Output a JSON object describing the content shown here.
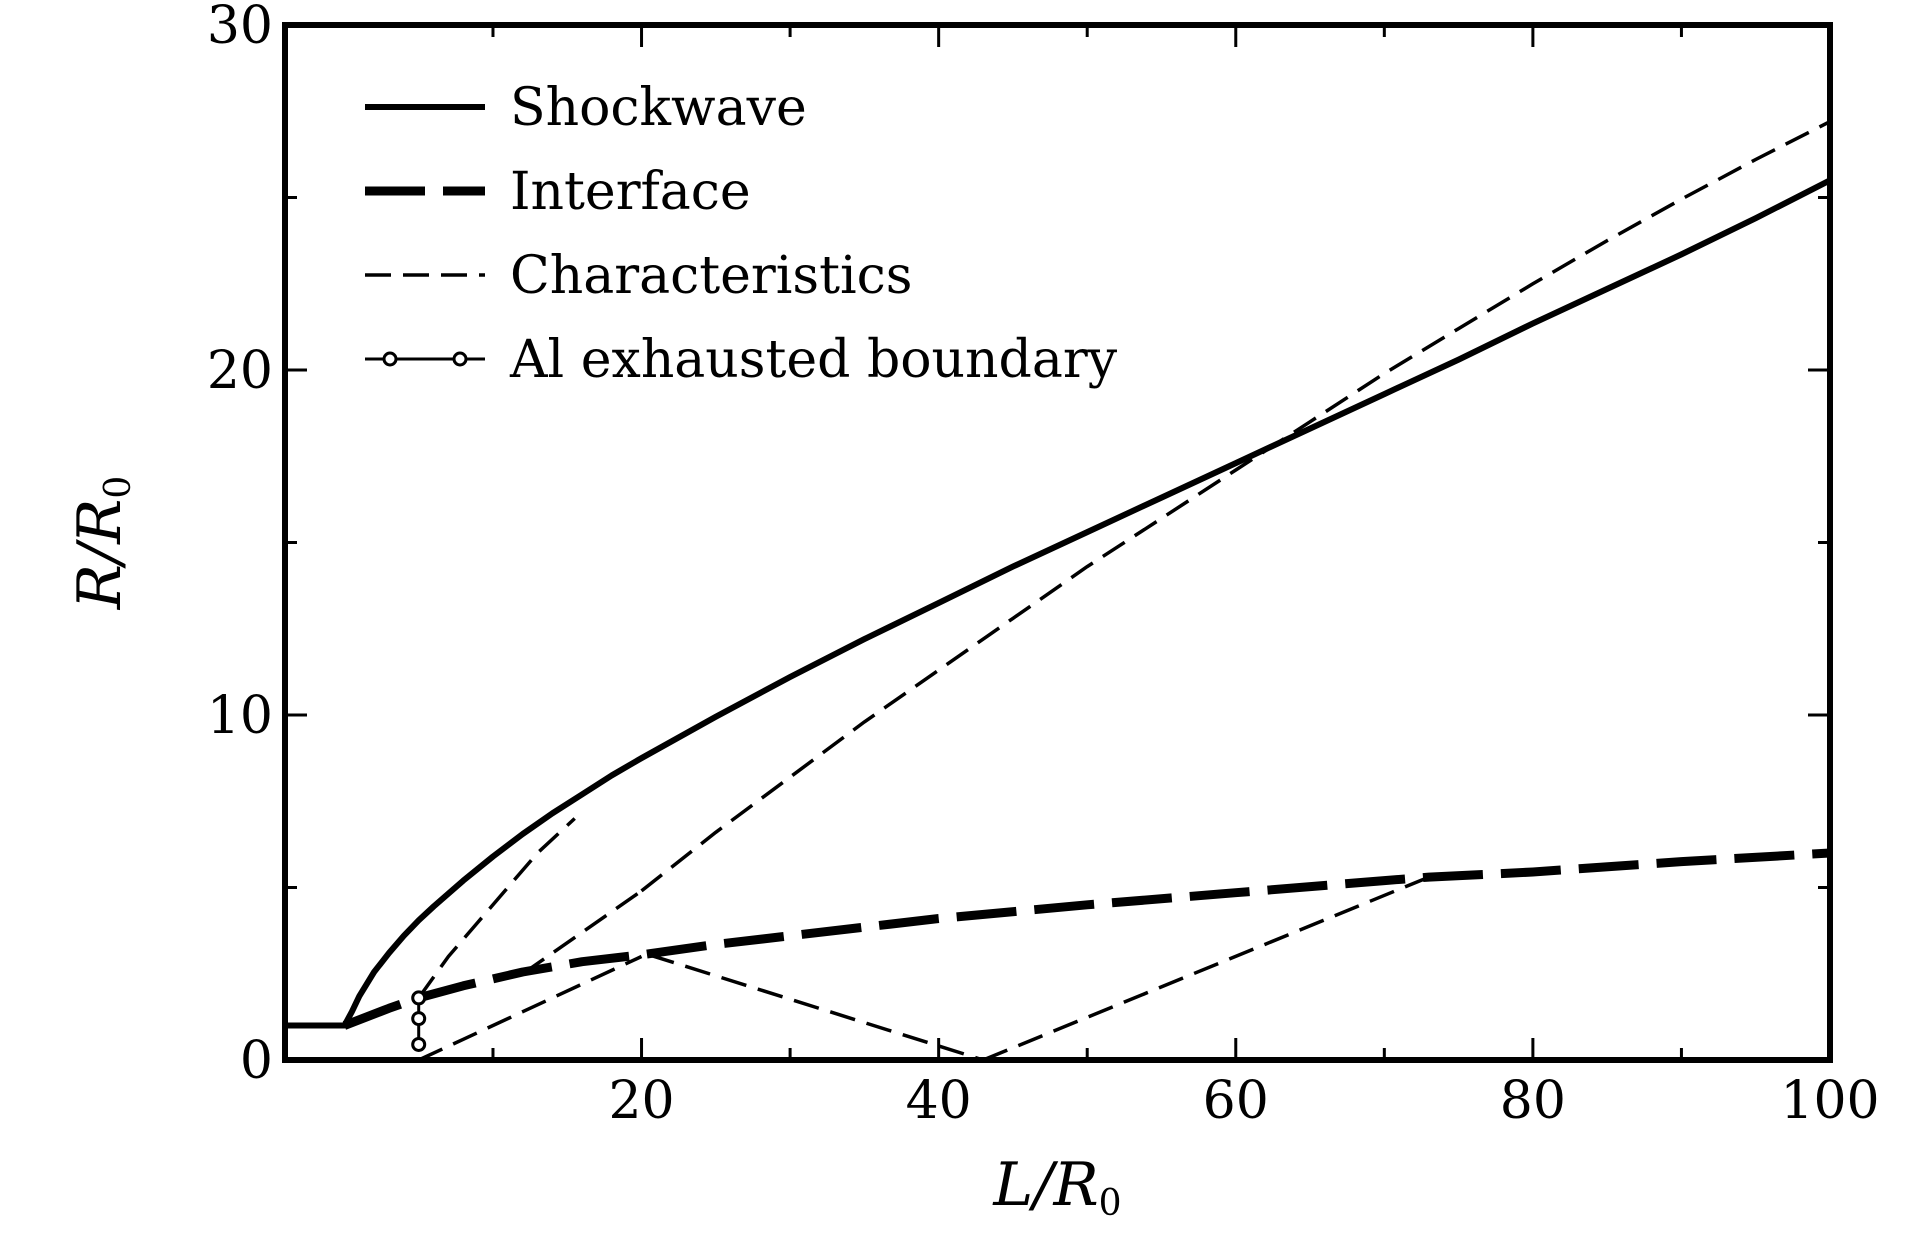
{
  "chart_data": {
    "type": "line",
    "title": "",
    "xlabel": "L/R0",
    "ylabel": "R/R0",
    "xlabel_parts": {
      "main": "L/R",
      "sub": "0"
    },
    "ylabel_parts": {
      "main": "R/R",
      "sub": "0"
    },
    "xlim": [
      -4,
      100
    ],
    "ylim": [
      0,
      30
    ],
    "x_ticks": [
      20,
      40,
      60,
      80,
      100
    ],
    "x_tick_labels": [
      "20",
      "40",
      "60",
      "80",
      "100"
    ],
    "x_minor_ticks": [
      10,
      30,
      50,
      70,
      90
    ],
    "y_ticks": [
      0,
      10,
      20,
      30
    ],
    "y_tick_labels": [
      "0",
      "10",
      "20",
      "30"
    ],
    "y_minor_ticks": [
      5,
      15,
      25
    ],
    "grid": false,
    "legend_position": "top-left",
    "series": [
      {
        "name": "Shockwave",
        "style": "solid",
        "color": "#000000",
        "x": [
          -4,
          0,
          0.5,
          1,
          2,
          3,
          4,
          5,
          6,
          8,
          10,
          12,
          14,
          16,
          18,
          20,
          25,
          30,
          35,
          40,
          45,
          50,
          55,
          60,
          65,
          70,
          75,
          80,
          85,
          90,
          95,
          100
        ],
        "y": [
          1.0,
          1.0,
          1.4,
          1.85,
          2.55,
          3.1,
          3.6,
          4.05,
          4.45,
          5.2,
          5.9,
          6.55,
          7.15,
          7.7,
          8.25,
          8.75,
          9.95,
          11.1,
          12.2,
          13.25,
          14.3,
          15.3,
          16.3,
          17.3,
          18.3,
          19.3,
          20.3,
          21.35,
          22.35,
          23.35,
          24.4,
          25.5
        ]
      },
      {
        "name": "Interface",
        "style": "long-dash",
        "color": "#000000",
        "x": [
          0,
          3,
          5,
          8,
          12,
          16,
          20,
          25,
          30,
          40,
          50,
          60,
          70,
          73,
          80,
          90,
          100
        ],
        "y": [
          1.0,
          1.5,
          1.8,
          2.15,
          2.55,
          2.85,
          3.05,
          3.35,
          3.6,
          4.1,
          4.5,
          4.85,
          5.2,
          5.3,
          5.45,
          5.75,
          6.0
        ]
      },
      {
        "name": "Characteristics",
        "style": "dash",
        "color": "#000000",
        "segments": [
          {
            "x": [
              5,
              7,
              9,
              11,
              13,
              15.5
            ],
            "y": [
              1.8,
              3.0,
              4.0,
              5.0,
              6.0,
              7.0
            ]
          },
          {
            "x": [
              5,
              8,
              12,
              16,
              20
            ],
            "y": [
              0,
              0.6,
              1.4,
              2.2,
              3.0
            ]
          },
          {
            "x": [
              12,
              16,
              20
            ],
            "y": [
              2.5,
              3.7,
              4.9
            ]
          },
          {
            "x": [
              20,
              25,
              30,
              35,
              40,
              45,
              50,
              55,
              60,
              65,
              70,
              75,
              80,
              85,
              90,
              95,
              100
            ],
            "y": [
              4.9,
              6.6,
              8.2,
              9.8,
              11.3,
              12.8,
              14.3,
              15.7,
              17.1,
              18.5,
              19.9,
              21.2,
              22.5,
              23.75,
              24.95,
              26.1,
              27.2
            ]
          },
          {
            "x": [
              20.5,
              43
            ],
            "y": [
              3.05,
              0
            ]
          },
          {
            "x": [
              43,
              73
            ],
            "y": [
              0,
              5.3
            ]
          }
        ]
      },
      {
        "name": "Al exhausted boundary",
        "style": "solid-with-circles",
        "color": "#000000",
        "x": [
          5,
          5,
          5
        ],
        "y": [
          0.45,
          1.2,
          1.8
        ]
      }
    ]
  }
}
